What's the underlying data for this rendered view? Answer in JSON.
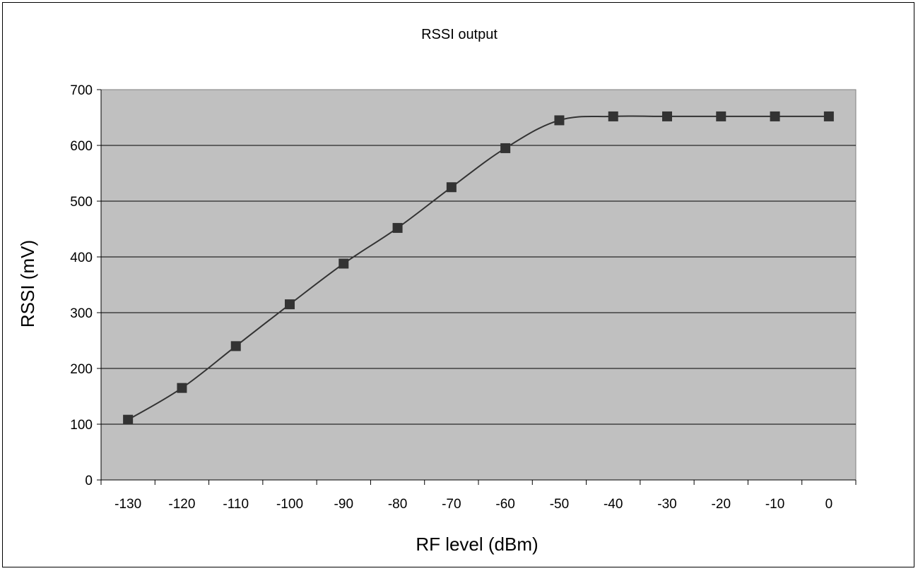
{
  "chart_data": {
    "type": "line",
    "title": "RSSI output",
    "xlabel": "RF level (dBm)",
    "ylabel": "RSSI (mV)",
    "categories": [
      "-130",
      "-120",
      "-110",
      "-100",
      "-90",
      "-80",
      "-70",
      "-60",
      "-50",
      "-40",
      "-30",
      "-20",
      "-10",
      "0"
    ],
    "yticks": [
      "0",
      "100",
      "200",
      "300",
      "400",
      "500",
      "600",
      "700"
    ],
    "ylim": [
      0,
      700
    ],
    "grid": "horizontal",
    "legend": "none",
    "series": [
      {
        "values": [
          108,
          165,
          240,
          315,
          388,
          452,
          525,
          595,
          645,
          652,
          652,
          652,
          652,
          652
        ],
        "color": "#333333",
        "marker": "square"
      }
    ],
    "plot_background": "#c0c0c0"
  }
}
